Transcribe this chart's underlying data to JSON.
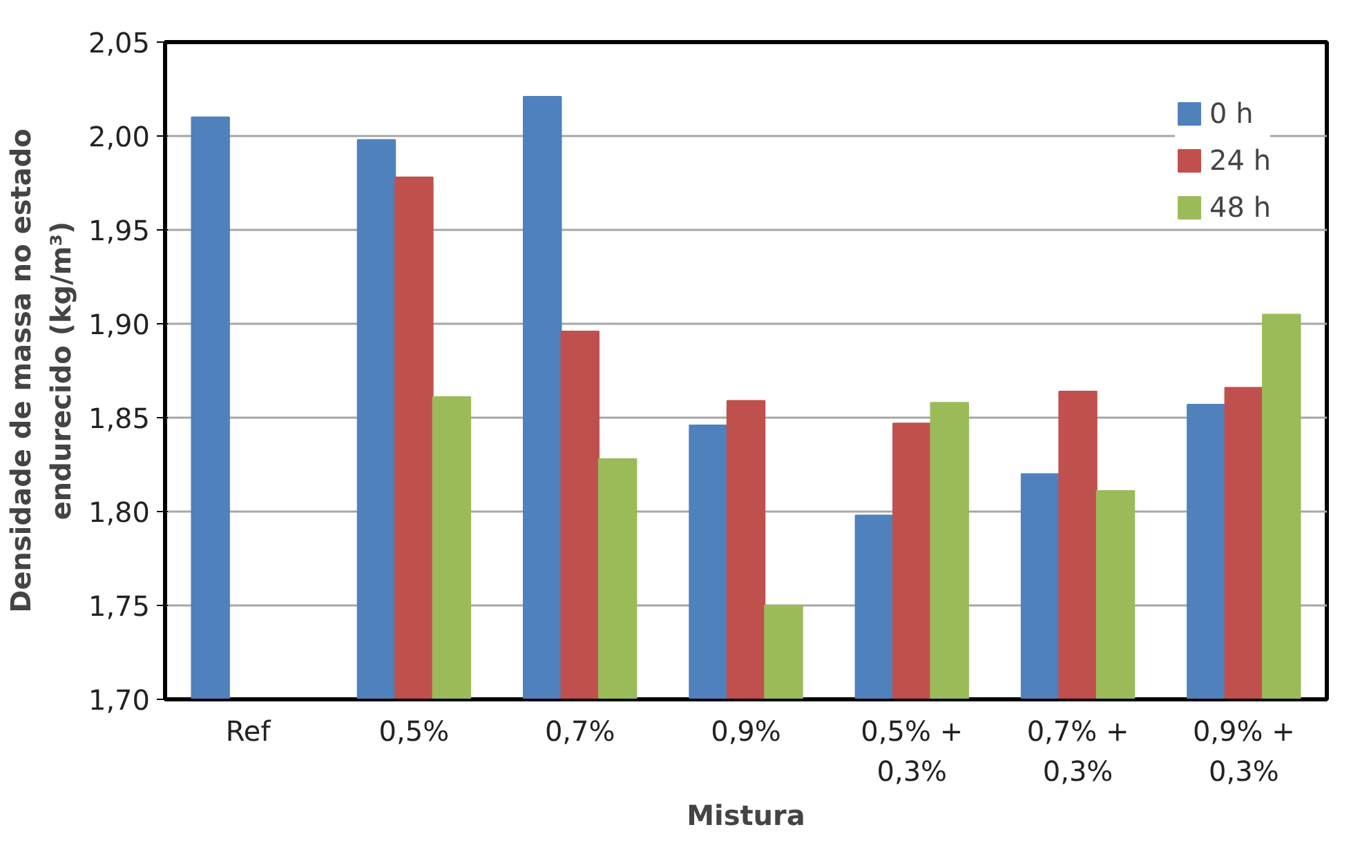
{
  "chart_data": {
    "type": "bar",
    "xlabel": "Mistura",
    "ylabel": "Densidade de massa no estado\nendurecido (kg/m³)",
    "categories": [
      "Ref",
      "0,5%",
      "0,7%",
      "0,9%",
      "0,5% +\n0,3%",
      "0,7% +\n0,3%",
      "0,9% +\n0,3%"
    ],
    "series": [
      {
        "name": "0 h",
        "color": "#4f81bd",
        "values": [
          2.01,
          1.998,
          2.021,
          1.846,
          1.798,
          1.82,
          1.857
        ]
      },
      {
        "name": "24 h",
        "color": "#c0504d",
        "values": [
          null,
          1.978,
          1.896,
          1.859,
          1.847,
          1.864,
          1.866
        ]
      },
      {
        "name": "48 h",
        "color": "#9bbb59",
        "values": [
          null,
          1.861,
          1.828,
          1.75,
          1.858,
          1.811,
          1.905
        ]
      }
    ],
    "ylim": [
      1.7,
      2.05
    ],
    "yticks": [
      {
        "value": 1.7,
        "label": "1,70"
      },
      {
        "value": 1.75,
        "label": "1,75"
      },
      {
        "value": 1.8,
        "label": "1,80"
      },
      {
        "value": 1.85,
        "label": "1,85"
      },
      {
        "value": 1.9,
        "label": "1,90"
      },
      {
        "value": 1.95,
        "label": "1,95"
      },
      {
        "value": 2.0,
        "label": "2,00"
      },
      {
        "value": 2.05,
        "label": "2,05"
      }
    ],
    "grid": "y",
    "legend": "top right"
  }
}
